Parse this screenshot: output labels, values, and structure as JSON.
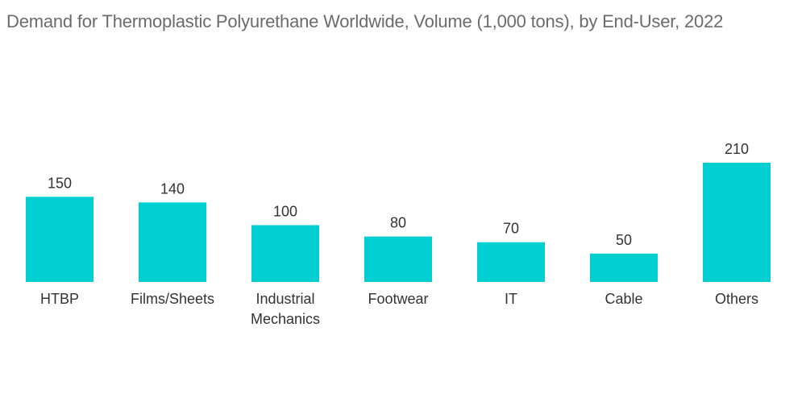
{
  "chart_data": {
    "type": "bar",
    "title": "Demand for Thermoplastic Polyurethane Worldwide, Volume (1,000 tons), by End-User, 2022",
    "categories": [
      "HTBP",
      "Films/Sheets",
      "Industrial Mechanics",
      "Footwear",
      "IT",
      "Cable",
      "Others"
    ],
    "category_lines": [
      [
        "HTBP"
      ],
      [
        "Films/Sheets"
      ],
      [
        "Industrial",
        "Mechanics"
      ],
      [
        "Footwear"
      ],
      [
        "IT"
      ],
      [
        "Cable"
      ],
      [
        "Others"
      ]
    ],
    "values": [
      150,
      140,
      100,
      80,
      70,
      50,
      210
    ],
    "value_labels": [
      "150",
      "140",
      "100",
      "80",
      "70",
      "50",
      "210"
    ],
    "xlabel": "",
    "ylabel": "",
    "ylim": [
      0,
      210
    ],
    "grid": false,
    "legend": "none",
    "bar_color": "#00cfd1"
  }
}
